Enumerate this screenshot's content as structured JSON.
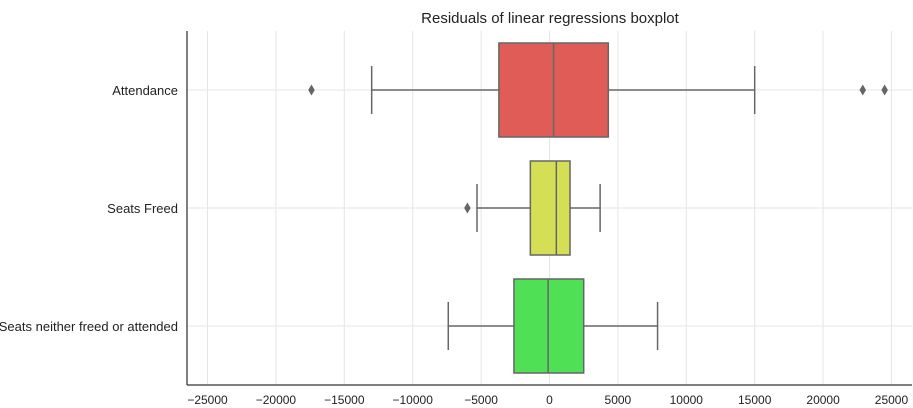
{
  "chart_data": {
    "type": "boxplot",
    "orientation": "horizontal",
    "title": "Residuals of linear regressions boxplot",
    "xlabel": "",
    "ylabel": "",
    "xlim": [
      -26500,
      26500
    ],
    "xticks": [
      -25000,
      -20000,
      -15000,
      -10000,
      -5000,
      0,
      5000,
      10000,
      15000,
      20000,
      25000
    ],
    "xtick_labels": [
      "−25000",
      "−20000",
      "−15000",
      "−10000",
      "−5000",
      "0",
      "5000",
      "10000",
      "15000",
      "20000",
      "25000"
    ],
    "grid": true,
    "series": [
      {
        "category": "Attendance",
        "color": "#e05c56",
        "whisker_low": -13000,
        "q1": -3700,
        "median": 300,
        "q3": 4300,
        "whisker_high": 15000,
        "outliers": [
          -17400,
          22900,
          24500
        ]
      },
      {
        "category": "Seats Freed",
        "color": "#d4df55",
        "whisker_low": -5300,
        "q1": -1400,
        "median": 500,
        "q3": 1500,
        "whisker_high": 3700,
        "outliers": [
          -6000
        ]
      },
      {
        "category": "Seats neither freed or attended",
        "color": "#4fe055",
        "whisker_low": -7400,
        "q1": -2600,
        "median": -100,
        "q3": 2500,
        "whisker_high": 7900,
        "outliers": []
      }
    ]
  }
}
